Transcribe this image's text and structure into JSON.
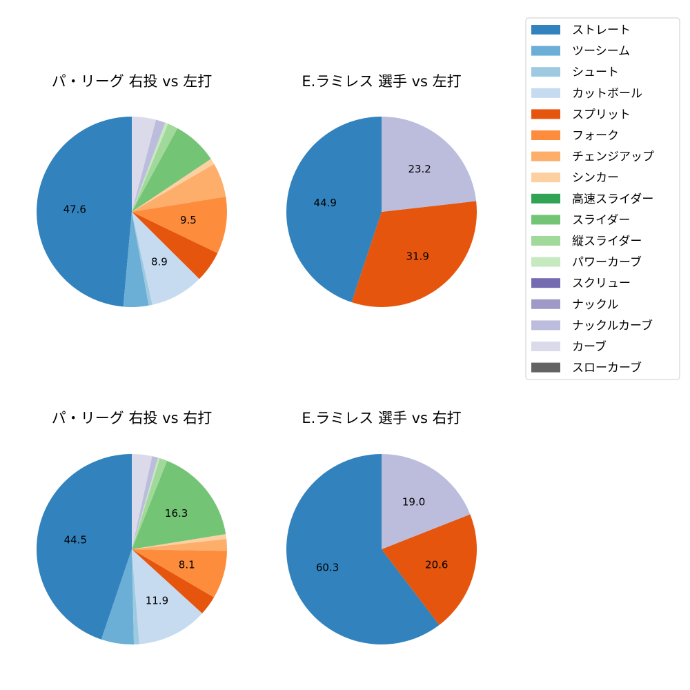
{
  "legend": {
    "items": [
      {
        "label": "ストレート",
        "color": "#3182bd"
      },
      {
        "label": "ツーシーム",
        "color": "#6baed6"
      },
      {
        "label": "シュート",
        "color": "#9ecae1"
      },
      {
        "label": "カットボール",
        "color": "#c6dbef"
      },
      {
        "label": "スプリット",
        "color": "#e6550d"
      },
      {
        "label": "フォーク",
        "color": "#fd8d3c"
      },
      {
        "label": "チェンジアップ",
        "color": "#fdae6b"
      },
      {
        "label": "シンカー",
        "color": "#fdd0a2"
      },
      {
        "label": "高速スライダー",
        "color": "#31a354"
      },
      {
        "label": "スライダー",
        "color": "#74c476"
      },
      {
        "label": "縦スライダー",
        "color": "#a1d99b"
      },
      {
        "label": "パワーカーブ",
        "color": "#c7e9c0"
      },
      {
        "label": "スクリュー",
        "color": "#756bb1"
      },
      {
        "label": "ナックル",
        "color": "#9e9ac8"
      },
      {
        "label": "ナックルカーブ",
        "color": "#bcbddc"
      },
      {
        "label": "カーブ",
        "color": "#dadaeb"
      },
      {
        "label": "スローカーブ",
        "color": "#636363"
      }
    ]
  },
  "chart_data": [
    {
      "type": "pie",
      "title": "パ・リーグ 右投 vs 左打",
      "slices": [
        {
          "label": "ストレート",
          "value": 47.6,
          "color": "#3182bd",
          "show_label": true
        },
        {
          "label": "ツーシーム",
          "value": 4.2,
          "color": "#6baed6",
          "show_label": false
        },
        {
          "label": "シュート",
          "value": 0.6,
          "color": "#9ecae1",
          "show_label": false
        },
        {
          "label": "カットボール",
          "value": 8.9,
          "color": "#c6dbef",
          "show_label": true
        },
        {
          "label": "スプリット",
          "value": 5.2,
          "color": "#e6550d",
          "show_label": false
        },
        {
          "label": "フォーク",
          "value": 9.5,
          "color": "#fd8d3c",
          "show_label": true
        },
        {
          "label": "チェンジアップ",
          "value": 5.7,
          "color": "#fdae6b",
          "show_label": false
        },
        {
          "label": "シンカー",
          "value": 1.0,
          "color": "#fdd0a2",
          "show_label": false
        },
        {
          "label": "スライダー",
          "value": 7.5,
          "color": "#74c476",
          "show_label": false
        },
        {
          "label": "縦スライダー",
          "value": 1.7,
          "color": "#a1d99b",
          "show_label": false
        },
        {
          "label": "パワーカーブ",
          "value": 0.5,
          "color": "#c7e9c0",
          "show_label": false
        },
        {
          "label": "ナックルカーブ",
          "value": 1.6,
          "color": "#bcbddc",
          "show_label": false
        },
        {
          "label": "カーブ",
          "value": 4.0,
          "color": "#dadaeb",
          "show_label": false
        }
      ]
    },
    {
      "type": "pie",
      "title": "E.ラミレス 選手 vs 左打",
      "slices": [
        {
          "label": "ストレート",
          "value": 44.9,
          "color": "#3182bd",
          "show_label": true
        },
        {
          "label": "スプリット",
          "value": 31.9,
          "color": "#e6550d",
          "show_label": true
        },
        {
          "label": "ナックルカーブ",
          "value": 23.2,
          "color": "#bcbddc",
          "show_label": true
        }
      ]
    },
    {
      "type": "pie",
      "title": "パ・リーグ 右投 vs 右打",
      "slices": [
        {
          "label": "ストレート",
          "value": 44.5,
          "color": "#3182bd",
          "show_label": true
        },
        {
          "label": "ツーシーム",
          "value": 5.5,
          "color": "#6baed6",
          "show_label": false
        },
        {
          "label": "シュート",
          "value": 0.9,
          "color": "#9ecae1",
          "show_label": false
        },
        {
          "label": "カットボール",
          "value": 11.9,
          "color": "#c6dbef",
          "show_label": true
        },
        {
          "label": "スプリット",
          "value": 3.3,
          "color": "#e6550d",
          "show_label": false
        },
        {
          "label": "フォーク",
          "value": 8.1,
          "color": "#fd8d3c",
          "show_label": true
        },
        {
          "label": "チェンジアップ",
          "value": 2.0,
          "color": "#fdae6b",
          "show_label": false
        },
        {
          "label": "シンカー",
          "value": 0.8,
          "color": "#fdd0a2",
          "show_label": false
        },
        {
          "label": "スライダー",
          "value": 16.3,
          "color": "#74c476",
          "show_label": true
        },
        {
          "label": "縦スライダー",
          "value": 1.3,
          "color": "#a1d99b",
          "show_label": false
        },
        {
          "label": "パワーカーブ",
          "value": 0.3,
          "color": "#c7e9c0",
          "show_label": false
        },
        {
          "label": "ナックルカーブ",
          "value": 1.0,
          "color": "#bcbddc",
          "show_label": false
        },
        {
          "label": "カーブ",
          "value": 3.4,
          "color": "#dadaeb",
          "show_label": false
        }
      ]
    },
    {
      "type": "pie",
      "title": "E.ラミレス 選手 vs 右打",
      "slices": [
        {
          "label": "ストレート",
          "value": 60.3,
          "color": "#3182bd",
          "show_label": true
        },
        {
          "label": "スプリット",
          "value": 20.6,
          "color": "#e6550d",
          "show_label": true
        },
        {
          "label": "ナックルカーブ",
          "value": 19.0,
          "color": "#bcbddc",
          "show_label": true
        }
      ]
    }
  ]
}
